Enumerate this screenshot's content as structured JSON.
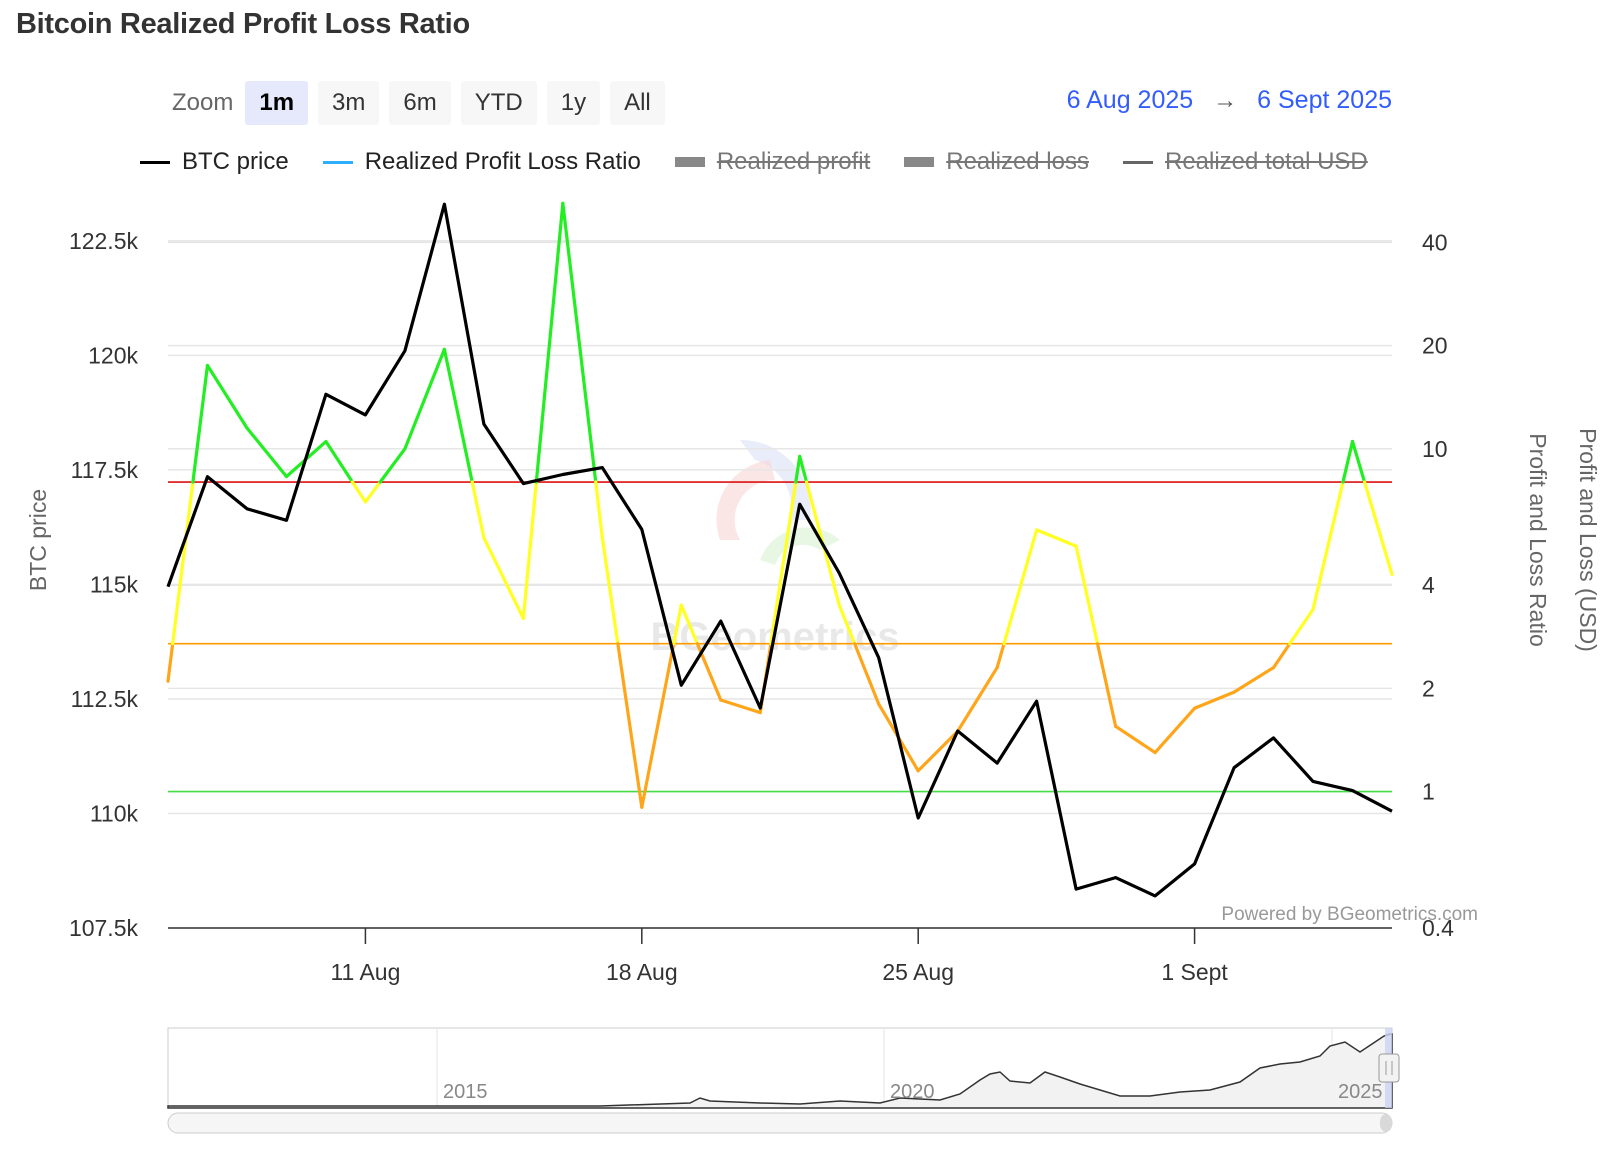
{
  "title": "Bitcoin Realized Profit Loss Ratio",
  "zoom": {
    "label": "Zoom",
    "buttons": [
      "1m",
      "3m",
      "6m",
      "YTD",
      "1y",
      "All"
    ],
    "active": "1m"
  },
  "range": {
    "from": "6 Aug 2025",
    "arrow": "→",
    "to": "6 Sept 2025"
  },
  "legend": [
    {
      "label": "BTC price",
      "color": "#000000",
      "visible": true
    },
    {
      "label": "Realized Profit Loss Ratio",
      "color": "#2caffe",
      "visible": true
    },
    {
      "label": "Realized profit",
      "color": "#888888",
      "visible": false
    },
    {
      "label": "Realized loss",
      "color": "#888888",
      "visible": false
    },
    {
      "label": "Realized total USD",
      "color": "#666666",
      "visible": false
    }
  ],
  "watermark": "BGeometrics",
  "credit": "Powered by BGeometrics.com",
  "navigator": {
    "labels": [
      "2015",
      "2020",
      "2025"
    ]
  },
  "colors": {
    "price": "#000000",
    "ratio_high": "#22ee22",
    "ratio_mid": "#ffff22",
    "ratio_low": "#ffa51a",
    "line_red": "#dd1111",
    "line_orange": "#ff9900",
    "line_green": "#44dd44"
  },
  "chart_data": {
    "type": "line",
    "x": [
      "2025-08-06",
      "2025-08-07",
      "2025-08-08",
      "2025-08-09",
      "2025-08-10",
      "2025-08-11",
      "2025-08-12",
      "2025-08-13",
      "2025-08-14",
      "2025-08-15",
      "2025-08-16",
      "2025-08-17",
      "2025-08-18",
      "2025-08-19",
      "2025-08-20",
      "2025-08-21",
      "2025-08-22",
      "2025-08-23",
      "2025-08-24",
      "2025-08-25",
      "2025-08-26",
      "2025-08-27",
      "2025-08-28",
      "2025-08-29",
      "2025-08-30",
      "2025-08-31",
      "2025-09-01",
      "2025-09-02",
      "2025-09-03",
      "2025-09-04",
      "2025-09-05",
      "2025-09-06"
    ],
    "x_ticks": [
      "11 Aug",
      "18 Aug",
      "25 Aug",
      "1 Sept"
    ],
    "series": [
      {
        "name": "BTC price",
        "axis": "left",
        "values": [
          114950,
          117350,
          116650,
          116400,
          119150,
          118700,
          120100,
          123300,
          118500,
          117200,
          117400,
          117550,
          116200,
          112800,
          114200,
          112300,
          116750,
          115250,
          113400,
          109900,
          111800,
          111100,
          112450,
          108350,
          108600,
          108200,
          108900,
          111000,
          111650,
          110700,
          110500,
          110050
        ]
      },
      {
        "name": "Realized Profit Loss Ratio",
        "axis": "right",
        "values": [
          2.1,
          17.5,
          11.5,
          8.3,
          10.5,
          7.0,
          10.0,
          19.5,
          5.5,
          3.2,
          52.0,
          5.5,
          0.9,
          3.5,
          1.85,
          1.7,
          9.5,
          3.5,
          1.8,
          1.15,
          1.5,
          2.3,
          5.8,
          5.2,
          1.55,
          1.3,
          1.75,
          1.95,
          2.3,
          3.4,
          10.5,
          4.3
        ]
      }
    ],
    "left_axis": {
      "title": "BTC price",
      "ticks": [
        "107.5k",
        "110k",
        "112.5k",
        "115k",
        "117.5k",
        "120k",
        "122.5k"
      ],
      "range": [
        107500,
        123500
      ]
    },
    "right_axis": {
      "titles": [
        "Profit and Loss Ratio",
        "Profit and Loss (USD)"
      ],
      "scale": "log",
      "ticks": [
        "0.4",
        "1",
        "2",
        "4",
        "10",
        "20",
        "40"
      ],
      "range": [
        0.4,
        55
      ]
    },
    "reference_lines": [
      {
        "value": 8,
        "color": "#dd1111"
      },
      {
        "value": 2.7,
        "color": "#ff9900"
      },
      {
        "value": 1,
        "color": "#44dd44"
      }
    ],
    "grid": true
  }
}
